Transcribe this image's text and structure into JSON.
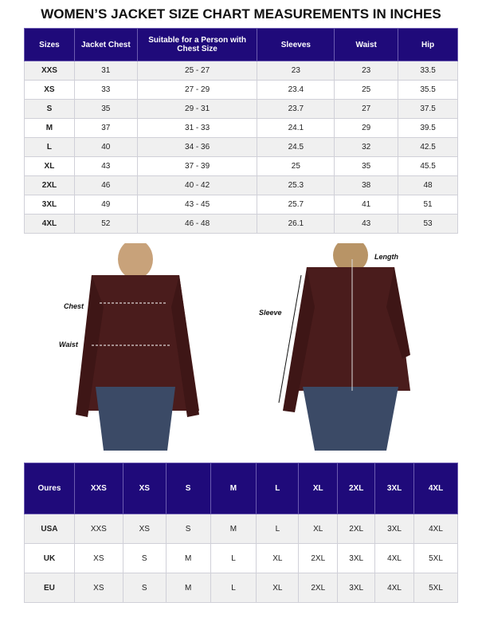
{
  "title": "WOMEN’S JACKET SIZE CHART MEASUREMENTS IN INCHES",
  "size_table": {
    "headers": [
      "Sizes",
      "Jacket Chest",
      "Suitable for a Person with Chest Size",
      "Sleeves",
      "Waist",
      "Hip"
    ],
    "rows": [
      [
        "XXS",
        "31",
        "25 - 27",
        "23",
        "23",
        "33.5"
      ],
      [
        "XS",
        "33",
        "27 - 29",
        "23.4",
        "25",
        "35.5"
      ],
      [
        "S",
        "35",
        "29 - 31",
        "23.7",
        "27",
        "37.5"
      ],
      [
        "M",
        "37",
        "31 - 33",
        "24.1",
        "29",
        "39.5"
      ],
      [
        "L",
        "40",
        "34 - 36",
        "24.5",
        "32",
        "42.5"
      ],
      [
        "XL",
        "43",
        "37 - 39",
        "25",
        "35",
        "45.5"
      ],
      [
        "2XL",
        "46",
        "40 - 42",
        "25.3",
        "38",
        "48"
      ],
      [
        "3XL",
        "49",
        "43 - 45",
        "25.7",
        "41",
        "51"
      ],
      [
        "4XL",
        "52",
        "46 - 48",
        "26.1",
        "43",
        "53"
      ]
    ]
  },
  "measure_labels": {
    "chest": "Chest",
    "waist": "Waist",
    "sleeve": "Sleeve",
    "length": "Length"
  },
  "conversion_table": {
    "headers": [
      "Oures",
      "XXS",
      "XS",
      "S",
      "M",
      "L",
      "XL",
      "2XL",
      "3XL",
      "4XL"
    ],
    "rows": [
      [
        "USA",
        "XXS",
        "XS",
        "S",
        "M",
        "L",
        "XL",
        "2XL",
        "3XL",
        "4XL"
      ],
      [
        "UK",
        "XS",
        "S",
        "M",
        "L",
        "XL",
        "2XL",
        "3XL",
        "4XL",
        "5XL"
      ],
      [
        "EU",
        "XS",
        "S",
        "M",
        "L",
        "XL",
        "2XL",
        "3XL",
        "4XL",
        "5XL"
      ]
    ]
  },
  "colors": {
    "header": "#1f0a7a",
    "jacket": "#4a1c1c",
    "jeans": "#3b4a66"
  }
}
